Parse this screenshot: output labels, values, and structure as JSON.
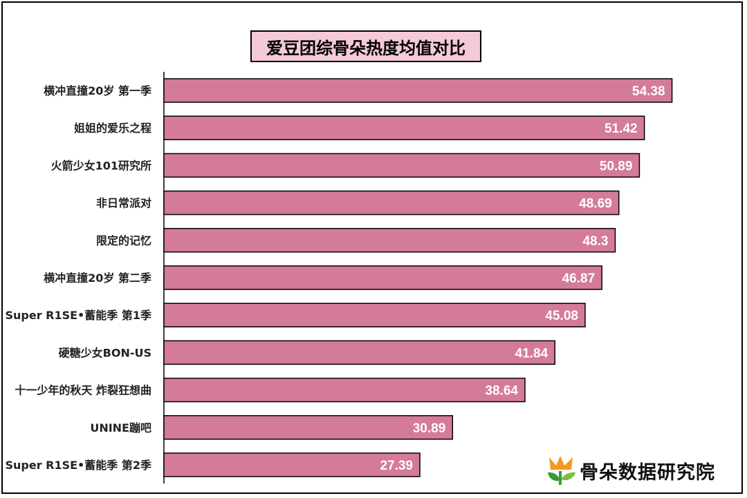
{
  "chart_data": {
    "type": "bar",
    "orientation": "horizontal",
    "title": "爱豆团综骨朵热度均值对比",
    "categories": [
      "横冲直撞20岁 第一季",
      "姐姐的爱乐之程",
      "火箭少女101研究所",
      "非日常派对",
      "限定的记忆",
      "横冲直撞20岁 第二季",
      "Super R1SE•蓄能季 第1季",
      "硬糖少女BON-US",
      "十一少年的秋天 炸裂狂想曲",
      "UNINE蹦吧",
      "Super R1SE•蓄能季 第2季"
    ],
    "values": [
      54.38,
      51.42,
      50.89,
      48.69,
      48.3,
      46.87,
      45.08,
      41.84,
      38.64,
      30.89,
      27.39
    ],
    "value_labels": [
      "54.38",
      "51.42",
      "50.89",
      "48.69",
      "48.3",
      "46.87",
      "45.08",
      "41.84",
      "38.64",
      "30.89",
      "27.39"
    ],
    "xlim": [
      0,
      59
    ],
    "grid": false,
    "bar_color": "#d47b98",
    "bar_border_color": "#000000",
    "label_color": "#ffffff"
  },
  "logo": {
    "text": "骨朵数据研究院",
    "colors": {
      "orange": "#f39a1e",
      "green": "#3a9a3a",
      "leaf": "#78c043"
    }
  }
}
